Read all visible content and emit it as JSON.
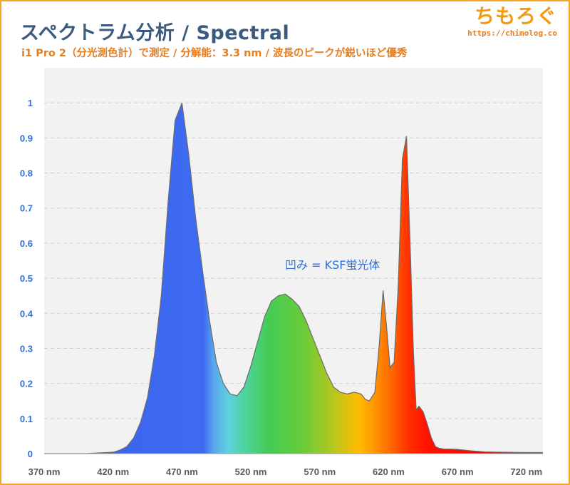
{
  "header": {
    "title": "スペクトラム分析 / Spectral",
    "subtitle": "i1 Pro 2（分光測色計）で測定 / 分解能：3.3 nm / 波長のピークが鋭いほど優秀"
  },
  "brand": {
    "logo_text": "ちもろぐ",
    "url": "https://chimolog.co"
  },
  "colors": {
    "frame": "#f5a623",
    "title": "#3c5a80",
    "subtitle": "#e67e22",
    "axis_label": "#2e6fd8",
    "outline": "#6b6b6b"
  },
  "chart_data": {
    "type": "area",
    "title": "",
    "xlabel": "",
    "ylabel": "",
    "xlim": [
      370,
      732
    ],
    "ylim": [
      0,
      1.1
    ],
    "grid": true,
    "x_ticks": [
      {
        "value": 370,
        "label": "370 nm"
      },
      {
        "value": 420,
        "label": "420 nm"
      },
      {
        "value": 470,
        "label": "470 nm"
      },
      {
        "value": 520,
        "label": "520 nm"
      },
      {
        "value": 570,
        "label": "570 nm"
      },
      {
        "value": 620,
        "label": "620 nm"
      },
      {
        "value": 670,
        "label": "670 nm"
      },
      {
        "value": 720,
        "label": "720 nm"
      }
    ],
    "y_ticks": [
      {
        "value": 0,
        "label": "0"
      },
      {
        "value": 0.1,
        "label": "0.1"
      },
      {
        "value": 0.2,
        "label": "0.2"
      },
      {
        "value": 0.3,
        "label": "0.3"
      },
      {
        "value": 0.4,
        "label": "0.4"
      },
      {
        "value": 0.5,
        "label": "0.5"
      },
      {
        "value": 0.6,
        "label": "0.6"
      },
      {
        "value": 0.7,
        "label": "0.7"
      },
      {
        "value": 0.8,
        "label": "0.8"
      },
      {
        "value": 0.9,
        "label": "0.9"
      },
      {
        "value": 1,
        "label": "1"
      }
    ],
    "x": [
      370,
      400,
      410,
      420,
      425,
      430,
      435,
      440,
      445,
      450,
      455,
      460,
      465,
      470,
      475,
      480,
      485,
      490,
      495,
      500,
      505,
      510,
      515,
      520,
      525,
      530,
      535,
      540,
      545,
      550,
      555,
      560,
      565,
      570,
      575,
      580,
      585,
      590,
      595,
      600,
      603,
      606,
      610,
      613,
      616,
      619,
      621,
      624,
      627,
      630,
      633,
      636,
      638,
      640,
      642,
      645,
      648,
      651,
      654,
      657,
      660,
      665,
      670,
      680,
      690,
      700,
      720,
      732
    ],
    "y": [
      0,
      0,
      0.002,
      0.004,
      0.01,
      0.02,
      0.045,
      0.09,
      0.16,
      0.28,
      0.45,
      0.72,
      0.95,
      1.0,
      0.85,
      0.67,
      0.52,
      0.38,
      0.26,
      0.2,
      0.17,
      0.165,
      0.19,
      0.25,
      0.32,
      0.39,
      0.435,
      0.45,
      0.455,
      0.44,
      0.42,
      0.38,
      0.33,
      0.28,
      0.23,
      0.19,
      0.175,
      0.17,
      0.175,
      0.17,
      0.155,
      0.15,
      0.175,
      0.3,
      0.465,
      0.34,
      0.245,
      0.26,
      0.48,
      0.84,
      0.905,
      0.55,
      0.29,
      0.125,
      0.135,
      0.12,
      0.085,
      0.045,
      0.02,
      0.015,
      0.013,
      0.013,
      0.012,
      0.008,
      0.005,
      0.004,
      0.003,
      0.003
    ],
    "annotations": [
      {
        "text": "凹み = KSF蛍光体",
        "x": 582,
        "y": 0.55
      }
    ]
  }
}
